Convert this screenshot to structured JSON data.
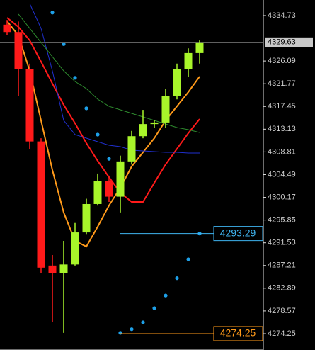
{
  "chart_data": {
    "type": "candlestick",
    "ylim": [
      4271.15,
      4337.69
    ],
    "yticks": [
      4334.73,
      4326.09,
      4321.77,
      4317.45,
      4313.13,
      4308.81,
      4304.49,
      4300.17,
      4295.85,
      4291.53,
      4287.21,
      4282.89,
      4278.57,
      4274.25
    ],
    "up_color": "#a8f52a",
    "down_color": "#ff1a1a",
    "open": [
      4333.0,
      4331.6,
      4324.6,
      4310.8,
      4287.2,
      4285.8,
      4287.4,
      4293.5,
      4298.9,
      4303.3,
      4300.3,
      4307.0,
      4311.8,
      4314.1,
      4314.4,
      4319.5,
      4324.6,
      4327.6
    ],
    "high": [
      4333.9,
      4333.6,
      4325.6,
      4311.4,
      4289.2,
      4291.9,
      4295.3,
      4299.9,
      4304.7,
      4304.3,
      4308.1,
      4312.8,
      4316.8,
      4314.8,
      4320.8,
      4325.6,
      4328.5,
      4330.0
    ],
    "low": [
      4331.0,
      4319.5,
      4309.4,
      4285.8,
      4276.4,
      4274.4,
      4287.2,
      4293.2,
      4298.6,
      4299.3,
      4297.3,
      4306.4,
      4311.4,
      4313.4,
      4313.4,
      4318.8,
      4323.1,
      4325.6
    ],
    "close": [
      4331.6,
      4324.6,
      4310.8,
      4286.8,
      4285.8,
      4287.4,
      4293.5,
      4298.9,
      4303.3,
      4300.3,
      4307.0,
      4311.8,
      4314.1,
      4314.4,
      4319.5,
      4324.6,
      4327.6,
      4329.63
    ],
    "overlays": [
      {
        "color": "#ff1a1a",
        "width": 2,
        "values": [
          4334.32,
          4332.57,
          4330.01,
          4325.97,
          4321.8,
          4317.75,
          4314.25,
          4310.48,
          4307.11,
          4304.01,
          4301.05,
          4299.3,
          4299.3,
          4302.94,
          4306.44,
          4309.4,
          4312.37,
          4315.06
        ]
      },
      {
        "color": "#ff9a1a",
        "width": 2,
        "values": [
          4333.65,
          4330.95,
          4324.22,
          4314.79,
          4305.36,
          4297.28,
          4291.89,
          4290.81,
          4294.59,
          4298.63,
          4301.99,
          4306.04,
          4308.73,
          4311.42,
          4314.79,
          4317.48,
          4320.18,
          4323.14
        ]
      },
      {
        "color": "#2030d0",
        "width": 1,
        "values": [
          null,
          null,
          4337.0,
          4332.3,
          4324.22,
          4314.79,
          4312.1,
          4311.42,
          4310.75,
          4310.08,
          4309.81,
          4309.13,
          4309.0,
          4308.86,
          4308.73,
          4308.73,
          4308.59,
          4308.59
        ]
      },
      {
        "color": "#2e8b2e",
        "width": 1,
        "values": [
          null,
          4335.0,
          4332.3,
          4329.61,
          4326.91,
          4324.22,
          4322.2,
          4320.85,
          4318.83,
          4317.48,
          4316.81,
          4316.14,
          4315.46,
          4314.79,
          4314.12,
          4313.44,
          4313.04,
          4312.5
        ]
      }
    ],
    "sar": {
      "color": "#1ea0e8",
      "values": [
        null,
        null,
        null,
        null,
        4335.3,
        4329.3,
        4322.9,
        4317.1,
        4312.1,
        4307.5,
        4274.4,
        4275.1,
        4276.4,
        4279.1,
        4281.5,
        4284.8,
        4288.4,
        4293.29
      ]
    },
    "current_price": 4329.63,
    "levels": [
      {
        "value": 4293.29,
        "color": "#3fb4f0"
      },
      {
        "value": 4274.25,
        "color": "#ff9a1a"
      }
    ]
  }
}
